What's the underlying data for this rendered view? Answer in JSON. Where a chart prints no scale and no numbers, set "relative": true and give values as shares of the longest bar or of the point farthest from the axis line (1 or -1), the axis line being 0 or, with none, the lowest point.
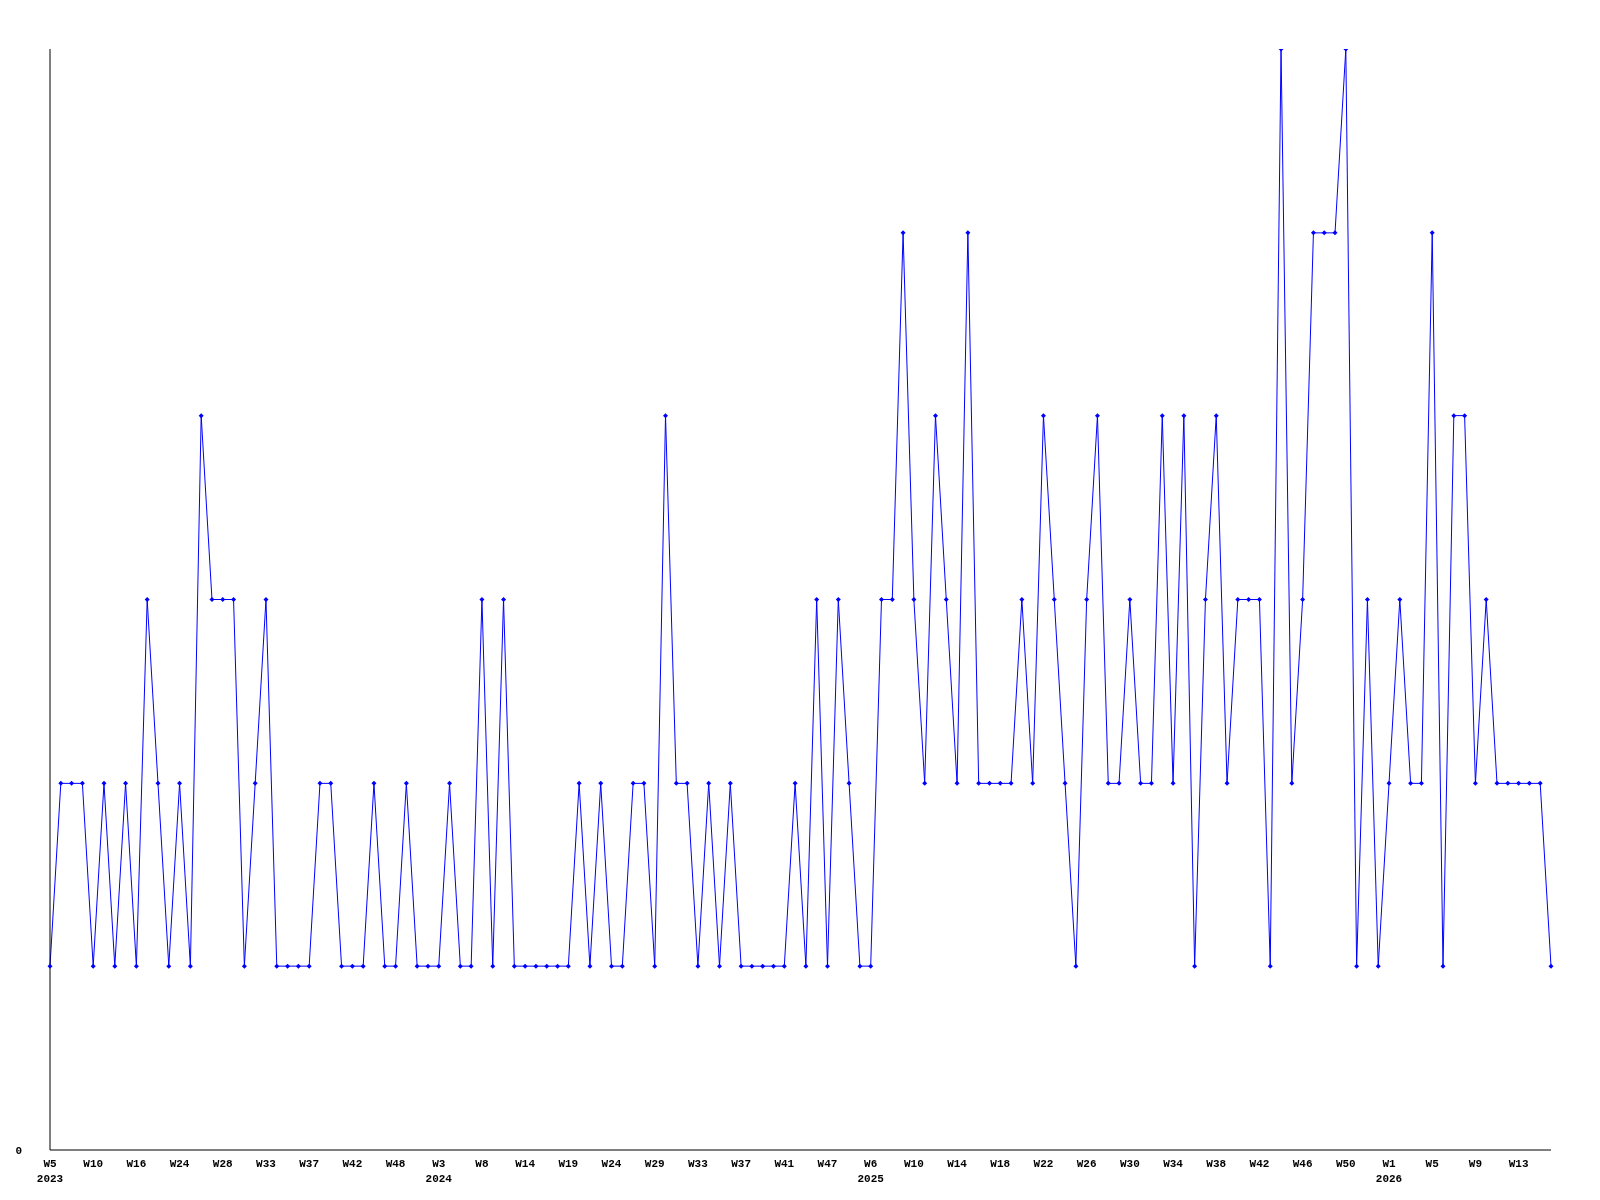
{
  "chart_data": {
    "type": "line",
    "relative": true,
    "categories": [
      "W5\n2023",
      null,
      null,
      null,
      "W10",
      null,
      null,
      null,
      "W16",
      null,
      null,
      null,
      "W24",
      null,
      null,
      null,
      "W28",
      null,
      null,
      null,
      "W33",
      null,
      null,
      null,
      "W37",
      null,
      null,
      null,
      "W42",
      null,
      null,
      null,
      "W48",
      null,
      null,
      null,
      "W3\n2024",
      null,
      null,
      null,
      "W8",
      null,
      null,
      null,
      "W14",
      null,
      null,
      null,
      "W19",
      null,
      null,
      null,
      "W24",
      null,
      null,
      null,
      "W29",
      null,
      null,
      null,
      "W33",
      null,
      null,
      null,
      "W37",
      null,
      null,
      null,
      "W41",
      null,
      null,
      null,
      "W47",
      null,
      null,
      null,
      "W6\n2025",
      null,
      null,
      null,
      "W10",
      null,
      null,
      null,
      "W14",
      null,
      null,
      null,
      "W18",
      null,
      null,
      null,
      "W22",
      null,
      null,
      null,
      "W26",
      null,
      null,
      null,
      "W30",
      null,
      null,
      null,
      "W34",
      null,
      null,
      null,
      "W38",
      null,
      null,
      null,
      "W42",
      null,
      null,
      null,
      "W46",
      null,
      null,
      null,
      "W50",
      null,
      null,
      null,
      "W1\n2026",
      null,
      null,
      null,
      "W5",
      null,
      null,
      null,
      "W9",
      null,
      null,
      null,
      "W13",
      null,
      null,
      null
    ],
    "series": [
      {
        "color": "#0000ff",
        "values": [
          0.167,
          0.333,
          0.333,
          0.333,
          0.167,
          0.333,
          0.167,
          0.333,
          0.167,
          0.5,
          0.333,
          0.167,
          0.333,
          0.167,
          0.667,
          0.5,
          0.5,
          0.5,
          0.167,
          0.333,
          0.5,
          0.167,
          0.167,
          0.167,
          0.167,
          0.333,
          0.333,
          0.167,
          0.167,
          0.167,
          0.333,
          0.167,
          0.167,
          0.333,
          0.167,
          0.167,
          0.167,
          0.333,
          0.167,
          0.167,
          0.5,
          0.167,
          0.5,
          0.167,
          0.167,
          0.167,
          0.167,
          0.167,
          0.167,
          0.333,
          0.167,
          0.333,
          0.167,
          0.167,
          0.333,
          0.333,
          0.167,
          0.667,
          0.333,
          0.333,
          0.167,
          0.333,
          0.167,
          0.333,
          0.167,
          0.167,
          0.167,
          0.167,
          0.167,
          0.333,
          0.167,
          0.5,
          0.167,
          0.5,
          0.333,
          0.167,
          0.167,
          0.5,
          0.5,
          0.833,
          0.5,
          0.333,
          0.667,
          0.5,
          0.333,
          0.833,
          0.333,
          0.333,
          0.333,
          0.333,
          0.5,
          0.333,
          0.667,
          0.5,
          0.333,
          0.167,
          0.5,
          0.667,
          0.333,
          0.333,
          0.5,
          0.333,
          0.333,
          0.667,
          0.333,
          0.667,
          0.167,
          0.5,
          0.667,
          0.333,
          0.5,
          0.5,
          0.5,
          0.167,
          1,
          0.333,
          0.5,
          0.833,
          0.833,
          0.833,
          1,
          0.167,
          0.5,
          0.167,
          0.333,
          0.5,
          0.333,
          0.333,
          0.833,
          0.167,
          0.667,
          0.667,
          0.333,
          0.5,
          0.333,
          0.333,
          0.333,
          0.333,
          0.333,
          0.167
        ]
      }
    ],
    "annotations": [
      "0"
    ],
    "marker": "diamond",
    "grid": false,
    "legend": false
  }
}
